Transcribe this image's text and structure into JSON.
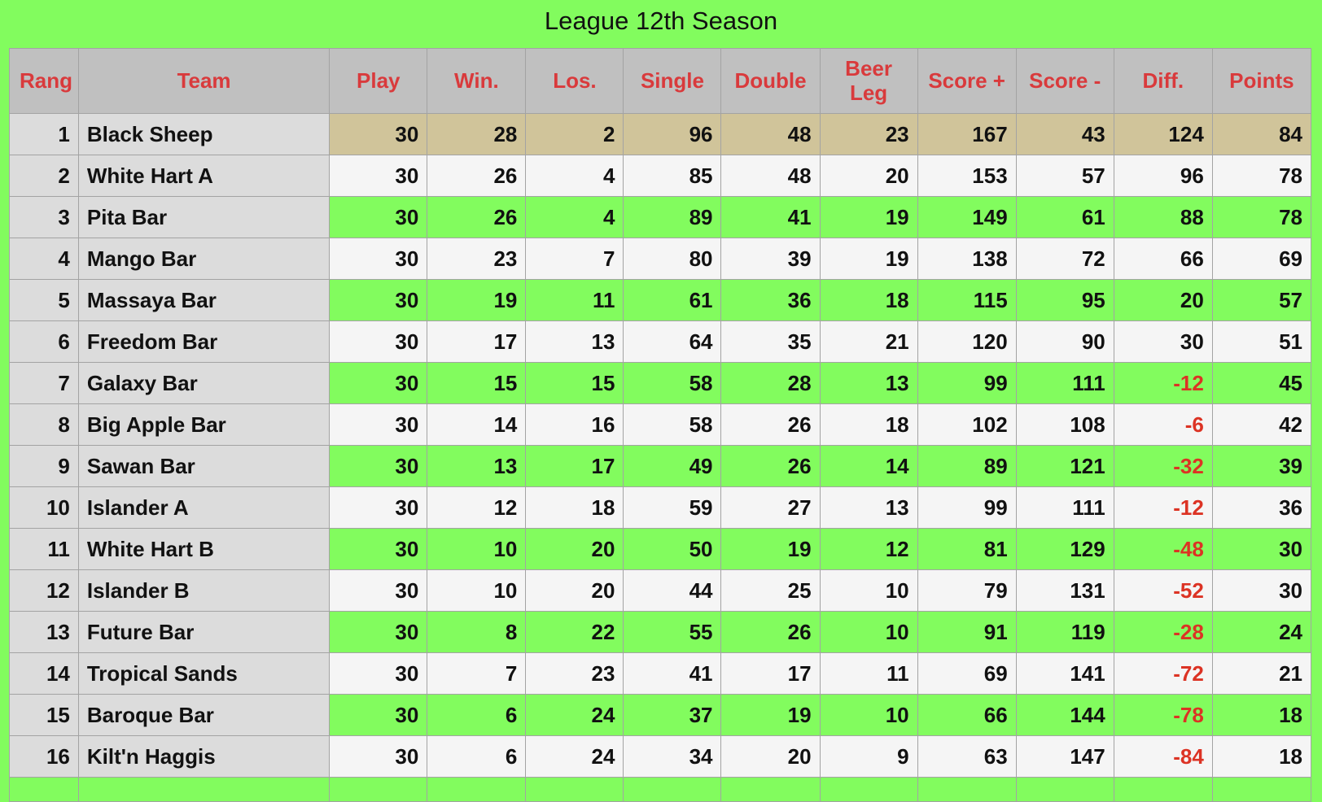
{
  "title": "League 12th Season",
  "columns": [
    "Rang",
    "Team",
    "Play",
    "Win.",
    "Los.",
    "Single",
    "Double",
    "Beer\nLeg",
    "Score +",
    "Score -",
    "Diff.",
    "Points"
  ],
  "rows": [
    {
      "rank": "1",
      "team": "Black Sheep",
      "play": "30",
      "win": "28",
      "los": "2",
      "single": "96",
      "double": "48",
      "beer_leg": "23",
      "score_plus": "167",
      "score_minus": "43",
      "diff": "124",
      "points": "84"
    },
    {
      "rank": "2",
      "team": "White Hart A",
      "play": "30",
      "win": "26",
      "los": "4",
      "single": "85",
      "double": "48",
      "beer_leg": "20",
      "score_plus": "153",
      "score_minus": "57",
      "diff": "96",
      "points": "78"
    },
    {
      "rank": "3",
      "team": "Pita Bar",
      "play": "30",
      "win": "26",
      "los": "4",
      "single": "89",
      "double": "41",
      "beer_leg": "19",
      "score_plus": "149",
      "score_minus": "61",
      "diff": "88",
      "points": "78"
    },
    {
      "rank": "4",
      "team": "Mango Bar",
      "play": "30",
      "win": "23",
      "los": "7",
      "single": "80",
      "double": "39",
      "beer_leg": "19",
      "score_plus": "138",
      "score_minus": "72",
      "diff": "66",
      "points": "69"
    },
    {
      "rank": "5",
      "team": "Massaya Bar",
      "play": "30",
      "win": "19",
      "los": "11",
      "single": "61",
      "double": "36",
      "beer_leg": "18",
      "score_plus": "115",
      "score_minus": "95",
      "diff": "20",
      "points": "57"
    },
    {
      "rank": "6",
      "team": "Freedom Bar",
      "play": "30",
      "win": "17",
      "los": "13",
      "single": "64",
      "double": "35",
      "beer_leg": "21",
      "score_plus": "120",
      "score_minus": "90",
      "diff": "30",
      "points": "51"
    },
    {
      "rank": "7",
      "team": "Galaxy Bar",
      "play": "30",
      "win": "15",
      "los": "15",
      "single": "58",
      "double": "28",
      "beer_leg": "13",
      "score_plus": "99",
      "score_minus": "111",
      "diff": "-12",
      "points": "45"
    },
    {
      "rank": "8",
      "team": "Big Apple Bar",
      "play": "30",
      "win": "14",
      "los": "16",
      "single": "58",
      "double": "26",
      "beer_leg": "18",
      "score_plus": "102",
      "score_minus": "108",
      "diff": "-6",
      "points": "42"
    },
    {
      "rank": "9",
      "team": "Sawan Bar",
      "play": "30",
      "win": "13",
      "los": "17",
      "single": "49",
      "double": "26",
      "beer_leg": "14",
      "score_plus": "89",
      "score_minus": "121",
      "diff": "-32",
      "points": "39"
    },
    {
      "rank": "10",
      "team": "Islander A",
      "play": "30",
      "win": "12",
      "los": "18",
      "single": "59",
      "double": "27",
      "beer_leg": "13",
      "score_plus": "99",
      "score_minus": "111",
      "diff": "-12",
      "points": "36"
    },
    {
      "rank": "11",
      "team": "White Hart B",
      "play": "30",
      "win": "10",
      "los": "20",
      "single": "50",
      "double": "19",
      "beer_leg": "12",
      "score_plus": "81",
      "score_minus": "129",
      "diff": "-48",
      "points": "30"
    },
    {
      "rank": "12",
      "team": "Islander B",
      "play": "30",
      "win": "10",
      "los": "20",
      "single": "44",
      "double": "25",
      "beer_leg": "10",
      "score_plus": "79",
      "score_minus": "131",
      "diff": "-52",
      "points": "30"
    },
    {
      "rank": "13",
      "team": "Future Bar",
      "play": "30",
      "win": "8",
      "los": "22",
      "single": "55",
      "double": "26",
      "beer_leg": "10",
      "score_plus": "91",
      "score_minus": "119",
      "diff": "-28",
      "points": "24"
    },
    {
      "rank": "14",
      "team": "Tropical Sands",
      "play": "30",
      "win": "7",
      "los": "23",
      "single": "41",
      "double": "17",
      "beer_leg": "11",
      "score_plus": "69",
      "score_minus": "141",
      "diff": "-72",
      "points": "21"
    },
    {
      "rank": "15",
      "team": "Baroque Bar",
      "play": "30",
      "win": "6",
      "los": "24",
      "single": "37",
      "double": "19",
      "beer_leg": "10",
      "score_plus": "66",
      "score_minus": "144",
      "diff": "-78",
      "points": "18"
    },
    {
      "rank": "16",
      "team": "Kilt'n Haggis",
      "play": "30",
      "win": "6",
      "los": "24",
      "single": "34",
      "double": "20",
      "beer_leg": "9",
      "score_plus": "63",
      "score_minus": "147",
      "diff": "-84",
      "points": "18"
    }
  ],
  "colors": {
    "background": "#82fc5e",
    "header_bg": "#c0c0c0",
    "header_text": "#d93a3c",
    "first_row_bg": "#d0c49a",
    "alt_row_bg": "#f5f5f5",
    "label_col_bg": "#dcdcdc",
    "negative_text": "#dc3324"
  }
}
